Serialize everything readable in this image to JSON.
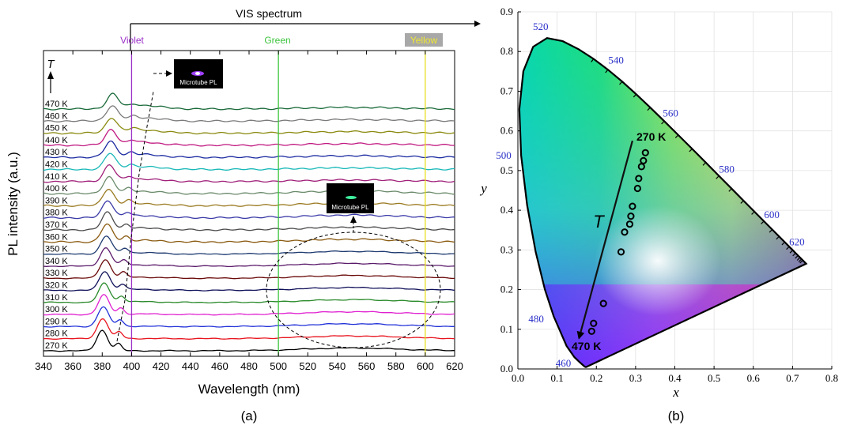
{
  "panel_a": {
    "caption": "(a)",
    "chart_data": {
      "type": "line",
      "xlabel": "Wavelength (nm)",
      "ylabel": "PL intensity (a.u.)",
      "xlim": [
        340,
        620
      ],
      "x_ticks": [
        340,
        360,
        380,
        400,
        420,
        440,
        460,
        480,
        500,
        520,
        540,
        560,
        580,
        600,
        620
      ],
      "top_arrow_label": "VIS spectrum",
      "temperature_axis_label": "T",
      "bands": [
        {
          "label": "Violet",
          "x": 400,
          "color": "#9b30c8"
        },
        {
          "label": "Green",
          "x": 500,
          "color": "#3cc43c"
        },
        {
          "label": "Yellow",
          "x": 600,
          "color": "#e8e020"
        }
      ],
      "inset_labels": [
        "Microtube PL",
        "Microtube PL"
      ],
      "series": [
        {
          "name": "270 K",
          "color": "#000000"
        },
        {
          "name": "280 K",
          "color": "#e8141e"
        },
        {
          "name": "290 K",
          "color": "#2030d8"
        },
        {
          "name": "300 K",
          "color": "#e020d0"
        },
        {
          "name": "310 K",
          "color": "#2a8a2a"
        },
        {
          "name": "320 K",
          "color": "#10105a"
        },
        {
          "name": "330 K",
          "color": "#6a0a0a"
        },
        {
          "name": "340 K",
          "color": "#5a1a6a"
        },
        {
          "name": "350 K",
          "color": "#1e3a70"
        },
        {
          "name": "360 K",
          "color": "#8a5a10"
        },
        {
          "name": "370 K",
          "color": "#4a4a4a"
        },
        {
          "name": "380 K",
          "color": "#3a3aa8"
        },
        {
          "name": "390 K",
          "color": "#9a7a20"
        },
        {
          "name": "400 K",
          "color": "#6a8a6a"
        },
        {
          "name": "410 K",
          "color": "#a0207a"
        },
        {
          "name": "420 K",
          "color": "#18b8b8"
        },
        {
          "name": "430 K",
          "color": "#1a2aa0"
        },
        {
          "name": "440 K",
          "color": "#c01880"
        },
        {
          "name": "450 K",
          "color": "#8a8a10"
        },
        {
          "name": "460 K",
          "color": "#7a7a7a"
        },
        {
          "name": "470 K",
          "color": "#1a6a3a"
        }
      ]
    }
  },
  "panel_b": {
    "caption": "(b)",
    "chart_data": {
      "type": "scatter",
      "xlabel": "x",
      "ylabel": "y",
      "xlim": [
        0.0,
        0.8
      ],
      "ylim": [
        0.0,
        0.9
      ],
      "x_ticks": [
        "0.0",
        "0.1",
        "0.2",
        "0.3",
        "0.4",
        "0.5",
        "0.6",
        "0.7",
        "0.8"
      ],
      "y_ticks": [
        "0.0",
        "0.1",
        "0.2",
        "0.3",
        "0.4",
        "0.5",
        "0.6",
        "0.7",
        "0.8",
        "0.9"
      ],
      "wavelength_labels": [
        {
          "label": "460",
          "x": 0.144,
          "y": 0.03
        },
        {
          "label": "480",
          "x": 0.091,
          "y": 0.133
        },
        {
          "label": "500",
          "x": 0.008,
          "y": 0.538
        },
        {
          "label": "520",
          "x": 0.074,
          "y": 0.834
        },
        {
          "label": "540",
          "x": 0.23,
          "y": 0.754
        },
        {
          "label": "560",
          "x": 0.373,
          "y": 0.624
        },
        {
          "label": "580",
          "x": 0.512,
          "y": 0.487
        },
        {
          "label": "600",
          "x": 0.627,
          "y": 0.372
        },
        {
          "label": "620",
          "x": 0.691,
          "y": 0.308
        }
      ],
      "temperature_arrow_label": "T",
      "start_label": "270 K",
      "end_label": "470 K",
      "points": [
        {
          "x": 0.325,
          "y": 0.545
        },
        {
          "x": 0.32,
          "y": 0.525
        },
        {
          "x": 0.315,
          "y": 0.51
        },
        {
          "x": 0.308,
          "y": 0.48
        },
        {
          "x": 0.305,
          "y": 0.455
        },
        {
          "x": 0.292,
          "y": 0.41
        },
        {
          "x": 0.288,
          "y": 0.385
        },
        {
          "x": 0.285,
          "y": 0.365
        },
        {
          "x": 0.272,
          "y": 0.345
        },
        {
          "x": 0.263,
          "y": 0.295
        },
        {
          "x": 0.218,
          "y": 0.165
        },
        {
          "x": 0.193,
          "y": 0.115
        },
        {
          "x": 0.188,
          "y": 0.095
        }
      ]
    }
  }
}
